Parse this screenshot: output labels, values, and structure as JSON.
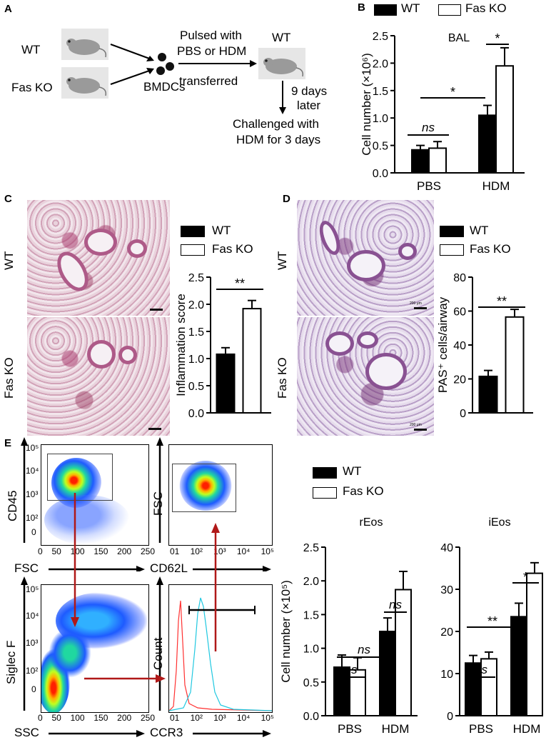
{
  "panels": {
    "A": {
      "letter": "A",
      "wt_label": "WT",
      "faskd_label": "Fas KO",
      "bmdc_label": "BMDCs",
      "pulsed_line1": "Pulsed with",
      "pulsed_line2": "PBS or HDM",
      "transferred": "transferred",
      "recipient_label": "WT",
      "days_line1": "9 days",
      "days_line2": "later",
      "challenge_line1": "Challenged with",
      "challenge_line2": "HDM for 3 days"
    },
    "B": {
      "letter": "B",
      "legend_wt": "WT",
      "legend_ko": "Fas KO"
    },
    "C": {
      "letter": "C",
      "row_wt": "WT",
      "row_ko": "Fas KO",
      "legend_wt": "WT",
      "legend_ko": "Fas KO"
    },
    "D": {
      "letter": "D",
      "row_wt": "WT",
      "row_ko": "Fas KO",
      "legend_wt": "WT",
      "legend_ko": "Fas KO",
      "scale_wt": "200 μm",
      "scale_ko": "200 μm"
    },
    "E": {
      "letter": "E",
      "legend_wt": "WT",
      "legend_ko": "Fas KO",
      "plot1": {
        "ylabel": "CD45",
        "xlabel": "FSC",
        "yticks": [
          "10⁵",
          "10⁴",
          "10³",
          "10²",
          "0"
        ],
        "xticks": [
          "0",
          "50",
          "100",
          "150",
          "200",
          "250"
        ]
      },
      "plot2": {
        "ylabel": "FSC",
        "xlabel": "CD62L",
        "xticks": [
          "0",
          "10²",
          "10³",
          "10⁴",
          "10⁵"
        ],
        "xtick0": "01"
      },
      "plot3": {
        "ylabel": "Siglec F",
        "xlabel": "SSC",
        "yticks": [
          "10⁵",
          "10⁴",
          "10³",
          "10²",
          "0"
        ],
        "xticks": [
          "0",
          "50",
          "100",
          "150",
          "200",
          "250"
        ]
      },
      "plot4": {
        "ylabel": "Count",
        "xlabel": "CCR3",
        "xticks": [
          "0",
          "10²",
          "10³",
          "10⁴",
          "10⁵"
        ],
        "xtick0": "01"
      }
    }
  },
  "chart_data": [
    {
      "id": "B",
      "type": "bar",
      "title": "BAL",
      "categories": [
        "PBS",
        "HDM"
      ],
      "series": [
        {
          "name": "WT",
          "values": [
            0.42,
            1.05
          ],
          "errors": [
            0.08,
            0.18
          ]
        },
        {
          "name": "Fas KO",
          "values": [
            0.45,
            1.95
          ],
          "errors": [
            0.12,
            0.33
          ]
        }
      ],
      "ylabel": "Cell number (×10⁶)",
      "ylim": [
        0,
        2.5
      ],
      "yticks": [
        "0.0",
        "0.5",
        "1.0",
        "1.5",
        "2.0",
        "2.5"
      ],
      "annotations": [
        {
          "between": "PBS WT – PBS Fas KO",
          "text": "ns"
        },
        {
          "between": "PBS WT – HDM WT",
          "text": "*"
        },
        {
          "between": "HDM WT – HDM Fas KO",
          "text": "*"
        }
      ]
    },
    {
      "id": "C",
      "type": "bar",
      "categories": [
        "WT",
        "Fas KO"
      ],
      "values": [
        1.08,
        1.92
      ],
      "errors": [
        0.12,
        0.15
      ],
      "ylabel": "Inflammation score",
      "ylim": [
        0,
        2.5
      ],
      "yticks": [
        "0.0",
        "0.5",
        "1.0",
        "1.5",
        "2.0",
        "2.5"
      ],
      "annotations": [
        {
          "between": "WT – Fas KO",
          "text": "**"
        }
      ]
    },
    {
      "id": "D",
      "type": "bar",
      "categories": [
        "WT",
        "Fas KO"
      ],
      "values": [
        21.5,
        56.5
      ],
      "errors": [
        3.5,
        4.5
      ],
      "ylabel": "PAS⁺ cells/airway",
      "ylim": [
        0,
        80
      ],
      "yticks": [
        "0",
        "20",
        "40",
        "60",
        "80"
      ],
      "annotations": [
        {
          "between": "WT – Fas KO",
          "text": "**"
        }
      ]
    },
    {
      "id": "E-rEos",
      "type": "bar",
      "title": "rEos",
      "categories": [
        "PBS",
        "HDM"
      ],
      "series": [
        {
          "name": "WT",
          "values": [
            0.72,
            1.25
          ],
          "errors": [
            0.18,
            0.2
          ]
        },
        {
          "name": "Fas KO",
          "values": [
            0.68,
            1.87
          ],
          "errors": [
            0.18,
            0.27
          ]
        }
      ],
      "ylabel": "Cell number (×10⁵)",
      "ylim": [
        0,
        2.5
      ],
      "yticks": [
        "0.0",
        "0.5",
        "1.0",
        "1.5",
        "2.0",
        "2.5"
      ],
      "annotations": [
        {
          "between": "PBS WT – PBS Fas KO",
          "text": "ns"
        },
        {
          "between": "PBS WT – HDM WT",
          "text": "ns"
        },
        {
          "between": "HDM WT – HDM Fas KO",
          "text": "ns"
        }
      ]
    },
    {
      "id": "E-iEos",
      "type": "bar",
      "title": "iEos",
      "categories": [
        "PBS",
        "HDM"
      ],
      "series": [
        {
          "name": "WT",
          "values": [
            12.5,
            23.5
          ],
          "errors": [
            1.8,
            3.2
          ]
        },
        {
          "name": "Fas KO",
          "values": [
            13.5,
            33.8
          ],
          "errors": [
            1.6,
            2.5
          ]
        }
      ],
      "ylim": [
        0,
        40
      ],
      "yticks": [
        "0",
        "10",
        "20",
        "30",
        "40"
      ],
      "annotations": [
        {
          "between": "PBS WT – PBS Fas KO",
          "text": "ns"
        },
        {
          "between": "PBS WT – HDM WT",
          "text": "**"
        },
        {
          "between": "HDM WT – HDM Fas KO",
          "text": "*"
        }
      ]
    }
  ]
}
